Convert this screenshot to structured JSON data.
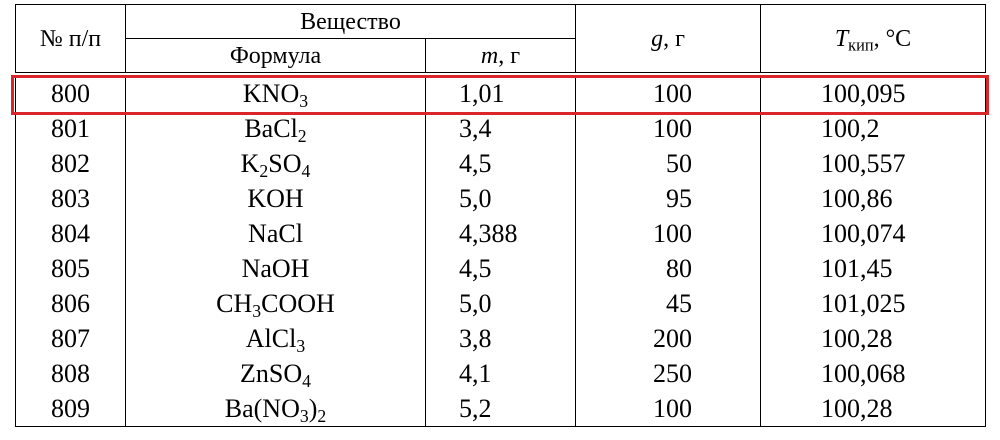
{
  "table": {
    "header": {
      "number": "№ п/п",
      "substance": "Вещество",
      "formula": "Формула",
      "mass": {
        "symbol": "m",
        "unit": ", г"
      },
      "water": {
        "symbol": "g",
        "unit": ", г"
      },
      "boiling": {
        "symbol": "T",
        "sub": "кип",
        "unit": ", °C"
      }
    },
    "rows": [
      {
        "number": "800",
        "formula": [
          "KNO",
          "3"
        ],
        "mass": "1,01",
        "water": "100",
        "boiling": "100,095"
      },
      {
        "number": "801",
        "formula": [
          "BaCl",
          "2"
        ],
        "mass": "3,4",
        "water": "100",
        "boiling": "100,2"
      },
      {
        "number": "802",
        "formula": [
          "K",
          "2",
          "SO",
          "4"
        ],
        "mass": "4,5",
        "water": "50",
        "boiling": "100,557"
      },
      {
        "number": "803",
        "formula": [
          "KOH"
        ],
        "mass": "5,0",
        "water": "95",
        "boiling": "100,86"
      },
      {
        "number": "804",
        "formula": [
          "NaCl"
        ],
        "mass": "4,388",
        "water": "100",
        "boiling": "100,074"
      },
      {
        "number": "805",
        "formula": [
          "NaOH"
        ],
        "mass": "4,5",
        "water": "80",
        "boiling": "101,45"
      },
      {
        "number": "806",
        "formula": [
          "CH",
          "3",
          "COOH"
        ],
        "mass": "5,0",
        "water": "45",
        "boiling": "101,025"
      },
      {
        "number": "807",
        "formula": [
          "AlCl",
          "3"
        ],
        "mass": "3,8",
        "water": "200",
        "boiling": "100,28"
      },
      {
        "number": "808",
        "formula": [
          "ZnSO",
          "4"
        ],
        "mass": "4,1",
        "water": "250",
        "boiling": "100,068"
      },
      {
        "number": "809",
        "formula": [
          "Ba(NO",
          "3",
          ")",
          "2"
        ],
        "mass": "5,2",
        "water": "100",
        "boiling": "100,28"
      }
    ]
  }
}
